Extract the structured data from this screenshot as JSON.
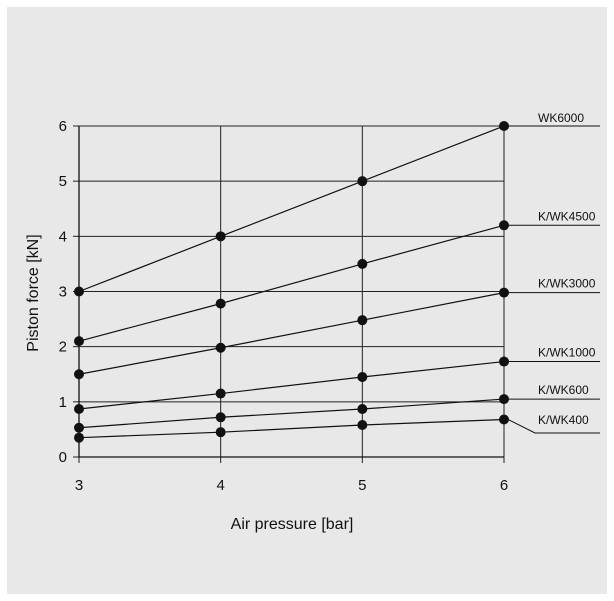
{
  "chart_data": {
    "type": "line",
    "xlabel": "Air pressure [bar]",
    "ylabel": "Piston force [kN]",
    "x": [
      3,
      4,
      5,
      6
    ],
    "xlim": [
      3,
      6
    ],
    "ylim": [
      0,
      6
    ],
    "xticks": [
      "3",
      "4",
      "5",
      "6"
    ],
    "yticks": [
      "0",
      "1",
      "2",
      "3",
      "4",
      "5",
      "6"
    ],
    "grid": true,
    "legend": "labels at right end of each line",
    "series": [
      {
        "name": "WK6000",
        "values": [
          3.0,
          4.0,
          5.0,
          6.0
        ]
      },
      {
        "name": "K/WK4500",
        "values": [
          2.1,
          2.78,
          3.5,
          4.2
        ]
      },
      {
        "name": "K/WK3000",
        "values": [
          1.5,
          1.98,
          2.48,
          2.98
        ]
      },
      {
        "name": "K/WK1000",
        "values": [
          0.87,
          1.15,
          1.45,
          1.73
        ]
      },
      {
        "name": "K/WK600",
        "values": [
          0.53,
          0.72,
          0.87,
          1.05
        ]
      },
      {
        "name": "K/WK400",
        "values": [
          0.35,
          0.45,
          0.58,
          0.68
        ]
      }
    ]
  }
}
